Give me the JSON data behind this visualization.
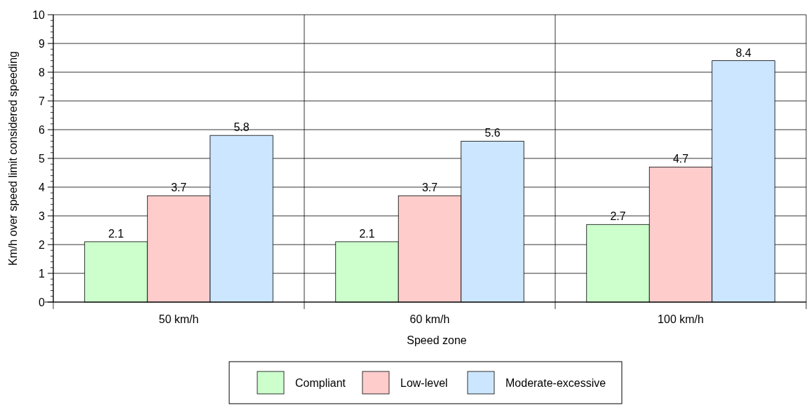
{
  "chart_data": {
    "type": "bar",
    "xlabel": "Speed zone",
    "ylabel": "Km/h over speed limit considered speeding",
    "categories": [
      "50 km/h",
      "60 km/h",
      "100 km/h"
    ],
    "series": [
      {
        "name": "Compliant",
        "color": "#ccffcc",
        "values": [
          2.1,
          2.1,
          2.7
        ]
      },
      {
        "name": "Low-level",
        "color": "#ffcccc",
        "values": [
          3.7,
          3.7,
          4.7
        ]
      },
      {
        "name": "Moderate-excessive",
        "color": "#cce6ff",
        "values": [
          5.8,
          5.6,
          8.4
        ]
      }
    ],
    "ylim": [
      0,
      10
    ],
    "yticks": [
      0,
      1,
      2,
      3,
      4,
      5,
      6,
      7,
      8,
      9,
      10
    ],
    "grid": true,
    "data_labels": true,
    "legend": "bottom"
  }
}
